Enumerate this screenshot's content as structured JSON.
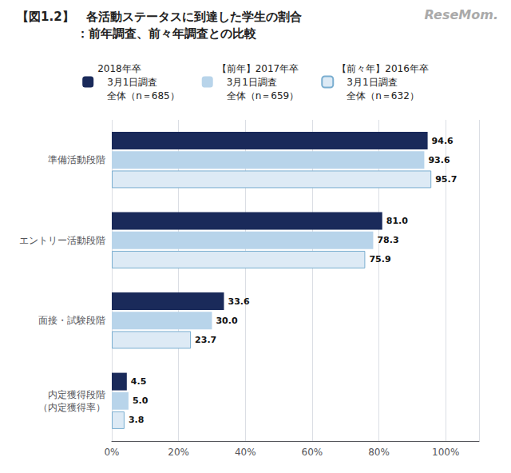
{
  "chart_data": {
    "type": "bar",
    "orientation": "horizontal",
    "title": "【図1.2】　各活動ステータスに到達した学生の割合",
    "subtitle": "　　　　　：前年調査、前々年調査との比較",
    "annotations": [
      "ReseMom."
    ],
    "categories": [
      "準備活動段階",
      "エントリー活動段階",
      "面接・試験段階",
      "内定獲得段階\n（内定獲得率）"
    ],
    "series": [
      {
        "name": "2018年卒\n　3月1日調査\n　全体（n＝685）",
        "color": "#1a2a5a",
        "values": [
          94.6,
          81.0,
          33.6,
          4.5
        ],
        "value_labels": [
          "94.6",
          "81.0",
          "33.6",
          "4.5"
        ]
      },
      {
        "name": "【前年】2017年卒\n　3月1日調査\n　全体（n＝659）",
        "color": "#b8d4ea",
        "values": [
          93.6,
          78.3,
          30.0,
          5.0
        ],
        "value_labels": [
          "93.6",
          "78.3",
          "30.0",
          "5.0"
        ]
      },
      {
        "name": "【前々年】2016年卒\n　3月1日調査\n　全体（n＝632）",
        "color": "#ddeaf5",
        "values": [
          95.7,
          75.9,
          23.7,
          3.8
        ],
        "value_labels": [
          "95.7",
          "75.9",
          "23.7",
          "3.8"
        ]
      }
    ],
    "xlim": [
      0,
      110
    ],
    "xticks": [
      {
        "value": 0,
        "label": "0%"
      },
      {
        "value": 20,
        "label": "20%"
      },
      {
        "value": 40,
        "label": "40%"
      },
      {
        "value": 60,
        "label": "60%"
      },
      {
        "value": 80,
        "label": "80%"
      },
      {
        "value": 100,
        "label": "100%"
      }
    ],
    "grid": true,
    "data_labels": true,
    "legend": "top"
  }
}
